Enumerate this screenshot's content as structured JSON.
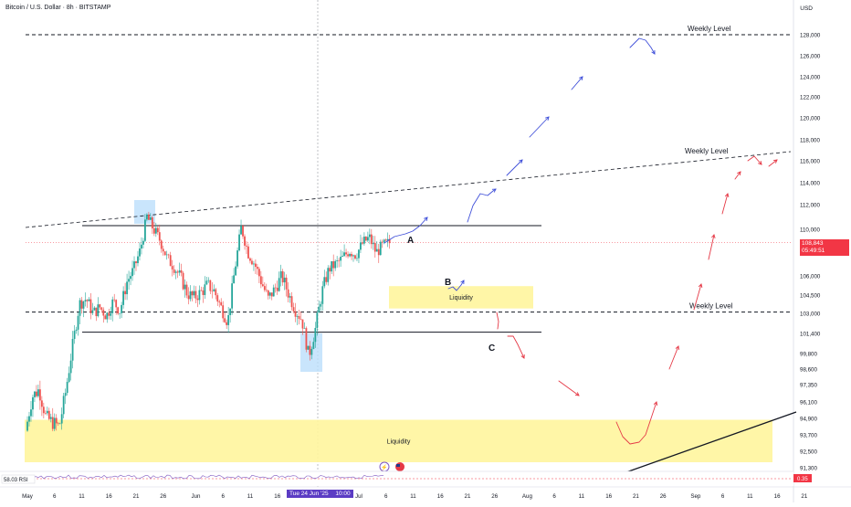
{
  "header": {
    "title": "Bitcoin / U.S. Dollar · 8h · BITSTAMP",
    "currency": "USD"
  },
  "price_badge": {
    "value": "108,843",
    "countdown": "05:49:51"
  },
  "crosshair_badge": {
    "date": "Tue 24 Jun '25",
    "time": "10:00"
  },
  "rsi": {
    "label": "RSI",
    "value": "58.03",
    "right_value": "0.35"
  },
  "colors": {
    "up": "#26a69a",
    "down": "#ef5350",
    "projection_blue": "#3f4fd9",
    "projection_red": "#e53946",
    "liquidity_fill": "#fff59d",
    "highlight_fill": "#bbdefb",
    "crosshair_badge": "#5b3cc4",
    "price_badge": "#f23645"
  },
  "chart_data": {
    "type": "candlestick",
    "y_ticks": [
      "128,000",
      "126,000",
      "124,000",
      "122,000",
      "120,000",
      "118,000",
      "116,000",
      "114,000",
      "112,000",
      "110,000",
      "106,000",
      "104,500",
      "103,000",
      "101,400",
      "99,800",
      "98,600",
      "97,350",
      "96,100",
      "94,900",
      "93,700",
      "92,500",
      "91,300"
    ],
    "x_ticks": [
      "May",
      "6",
      "11",
      "16",
      "21",
      "26",
      "Jun",
      "6",
      "11",
      "16",
      "21",
      "26",
      "Jul",
      "6",
      "11",
      "16",
      "21",
      "26",
      "Aug",
      "6",
      "11",
      "16",
      "21",
      "26",
      "Sep",
      "6",
      "11",
      "16",
      "21"
    ],
    "annotations": {
      "weekly_level_label": "Weekly Level",
      "liquidity_label": "Liquidity",
      "wave_a": "A",
      "wave_b": "B",
      "wave_c": "C"
    },
    "weekly_levels": [
      128000,
      103100
    ],
    "range_levels": {
      "top": 110300,
      "bottom": 101500
    },
    "liquidity_zones": [
      {
        "label": "Liquidity",
        "top": 105200,
        "bottom": 103400
      },
      {
        "label": "Liquidity",
        "top": 94800,
        "bottom": 91700
      }
    ],
    "ohlc_summary": {
      "start": "May 1 2025",
      "end": "Jul 7 2025",
      "path": [
        94000,
        96500,
        97000,
        95000,
        94600,
        94300,
        97000,
        100500,
        103800,
        104200,
        103000,
        103500,
        102800,
        104000,
        103200,
        105500,
        106500,
        108200,
        111000,
        110000,
        109000,
        107500,
        106800,
        105900,
        104600,
        104300,
        104700,
        105300,
        104800,
        103500,
        102300,
        106400,
        110200,
        108000,
        107000,
        105500,
        104200,
        105000,
        106000,
        104600,
        103300,
        102500,
        99600,
        101800,
        104800,
        106600,
        107000,
        107500,
        108200,
        107800,
        108800,
        109300,
        108000,
        108600,
        108843
      ]
    }
  }
}
